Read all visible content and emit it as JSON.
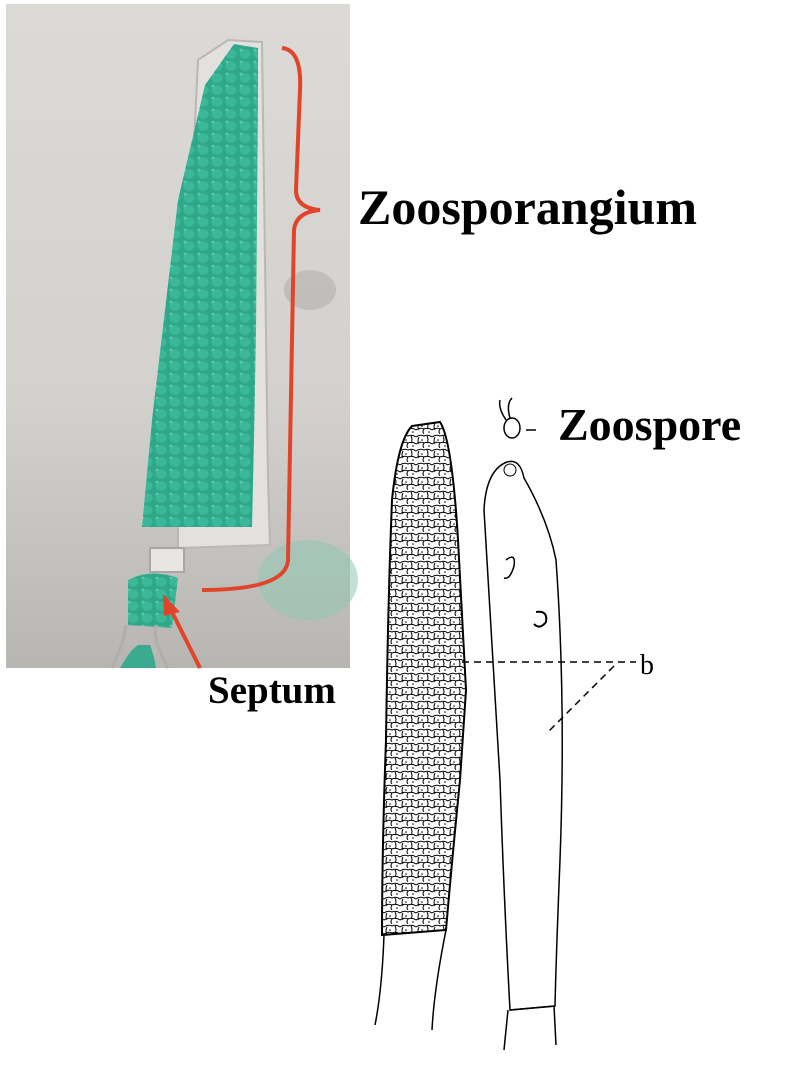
{
  "labels": {
    "zoosporangium": "Zoosporangium",
    "zoospore": "Zoospore",
    "septum": "Septum",
    "b": "b"
  },
  "colors": {
    "stain_green": "#2fa889",
    "annotation_red": "#e0452a",
    "photo_background": "#d6d4d0"
  }
}
